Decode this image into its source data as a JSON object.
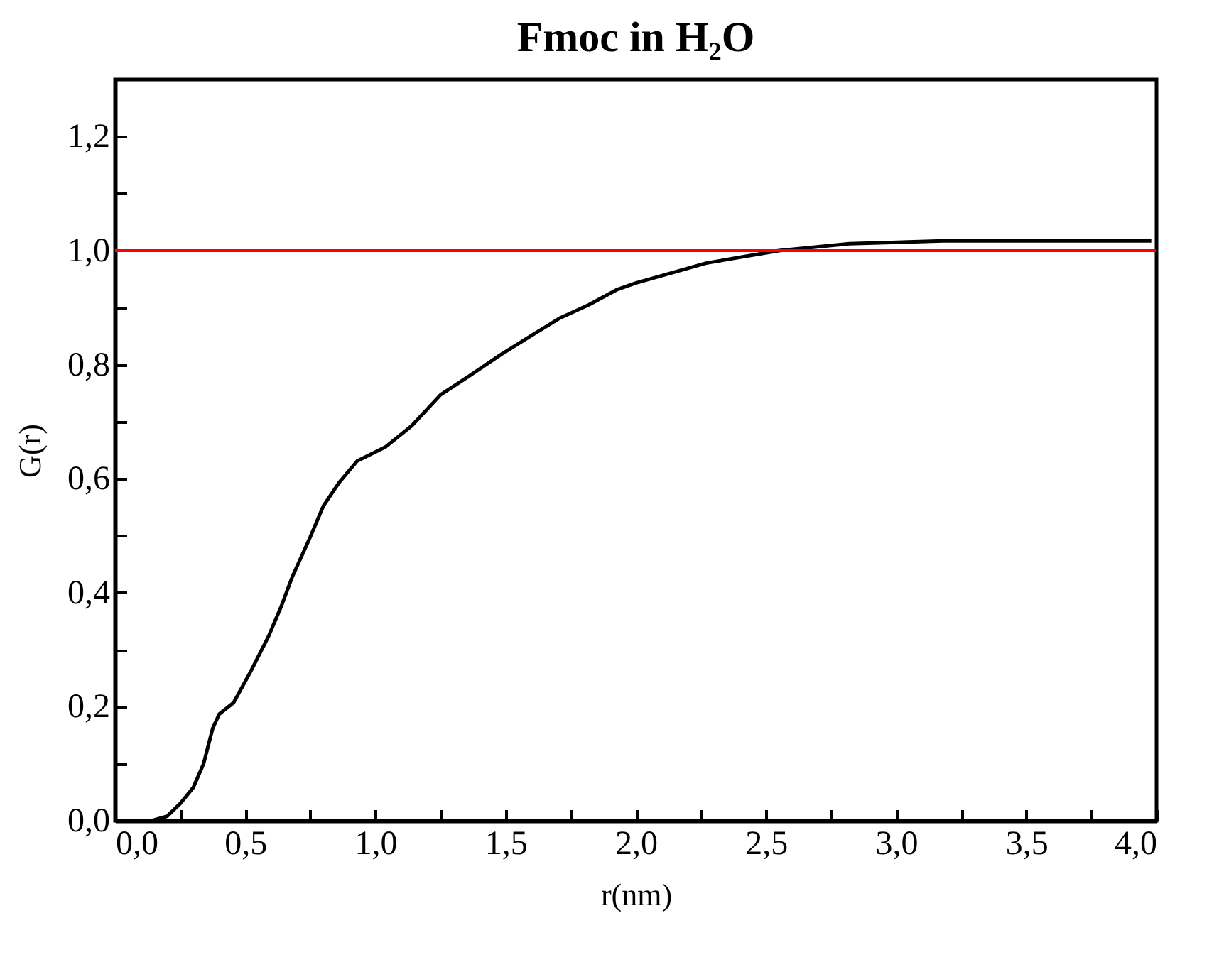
{
  "chart_data": {
    "type": "line",
    "title": "Fmoc in H₂O",
    "xlabel": "r(nm)",
    "ylabel": "G(r)",
    "xlim": [
      0,
      4
    ],
    "ylim": [
      0,
      1.3
    ],
    "xticks": [
      {
        "value": 0,
        "label": "0,0"
      },
      {
        "value": 0.25,
        "label": null
      },
      {
        "value": 0.5,
        "label": "0,5"
      },
      {
        "value": 0.75,
        "label": null
      },
      {
        "value": 1,
        "label": "1,0"
      },
      {
        "value": 1.25,
        "label": null
      },
      {
        "value": 1.5,
        "label": "1,5"
      },
      {
        "value": 1.75,
        "label": null
      },
      {
        "value": 2,
        "label": "2,0"
      },
      {
        "value": 2.25,
        "label": null
      },
      {
        "value": 2.5,
        "label": "2,5"
      },
      {
        "value": 2.75,
        "label": null
      },
      {
        "value": 3,
        "label": "3,0"
      },
      {
        "value": 3.25,
        "label": null
      },
      {
        "value": 3.5,
        "label": "3,5"
      },
      {
        "value": 3.75,
        "label": null
      },
      {
        "value": 4,
        "label": "4,0"
      }
    ],
    "yticks": [
      {
        "value": 0,
        "label": "0,0"
      },
      {
        "value": 0.1,
        "label": null
      },
      {
        "value": 0.2,
        "label": "0,2"
      },
      {
        "value": 0.3,
        "label": null
      },
      {
        "value": 0.4,
        "label": "0,4"
      },
      {
        "value": 0.5,
        "label": null
      },
      {
        "value": 0.6,
        "label": "0,6"
      },
      {
        "value": 0.7,
        "label": null
      },
      {
        "value": 0.8,
        "label": "0,8"
      },
      {
        "value": 0.9,
        "label": null
      },
      {
        "value": 1,
        "label": "1,0"
      },
      {
        "value": 1.1,
        "label": null
      },
      {
        "value": 1.2,
        "label": "1,2"
      }
    ],
    "series": [
      {
        "color": "#000000",
        "x": [
          0,
          0.14,
          0.2,
          0.25,
          0.3,
          0.34,
          0.375,
          0.4,
          0.455,
          0.52,
          0.59,
          0.64,
          0.68,
          0.75,
          0.8,
          0.86,
          0.93,
          1.04,
          1.14,
          1.25,
          1.36,
          1.48,
          1.61,
          1.71,
          1.82,
          1.93,
          2.0,
          2.27,
          2.55,
          2.82,
          3.18,
          3.98
        ],
        "values": [
          0,
          0,
          0.008,
          0.03,
          0.058,
          0.1,
          0.162,
          0.187,
          0.207,
          0.261,
          0.324,
          0.378,
          0.427,
          0.498,
          0.552,
          0.593,
          0.631,
          0.656,
          0.693,
          0.747,
          0.78,
          0.817,
          0.854,
          0.882,
          0.905,
          0.932,
          0.943,
          0.978,
          1.0,
          1.012,
          1.017,
          1.017
        ]
      }
    ],
    "ref_lines": [
      {
        "axis": "y",
        "value": 1,
        "color": "#ff0000"
      }
    ],
    "grid": false,
    "marker": "none",
    "line_style": "solid"
  }
}
